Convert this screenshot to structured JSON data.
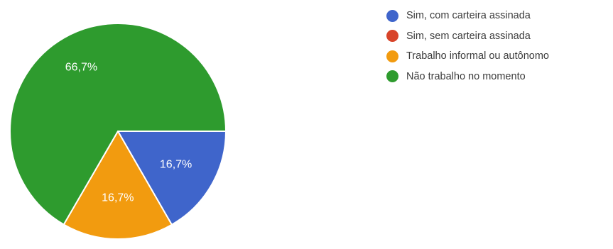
{
  "chart_data": {
    "type": "pie",
    "title": "",
    "categories": [
      "Sim, com carteira assinada",
      "Sim, sem carteira assinada",
      "Trabalho informal ou autônomo",
      "Não trabalho no momento"
    ],
    "values": [
      16.7,
      0,
      16.7,
      66.7
    ],
    "value_labels": [
      "16,7%",
      "",
      "16,7%",
      "66,7%"
    ],
    "colors": [
      "#3F65CB",
      "#D8442A",
      "#F29B0F",
      "#2E9B2E"
    ],
    "legend_position": "right"
  }
}
